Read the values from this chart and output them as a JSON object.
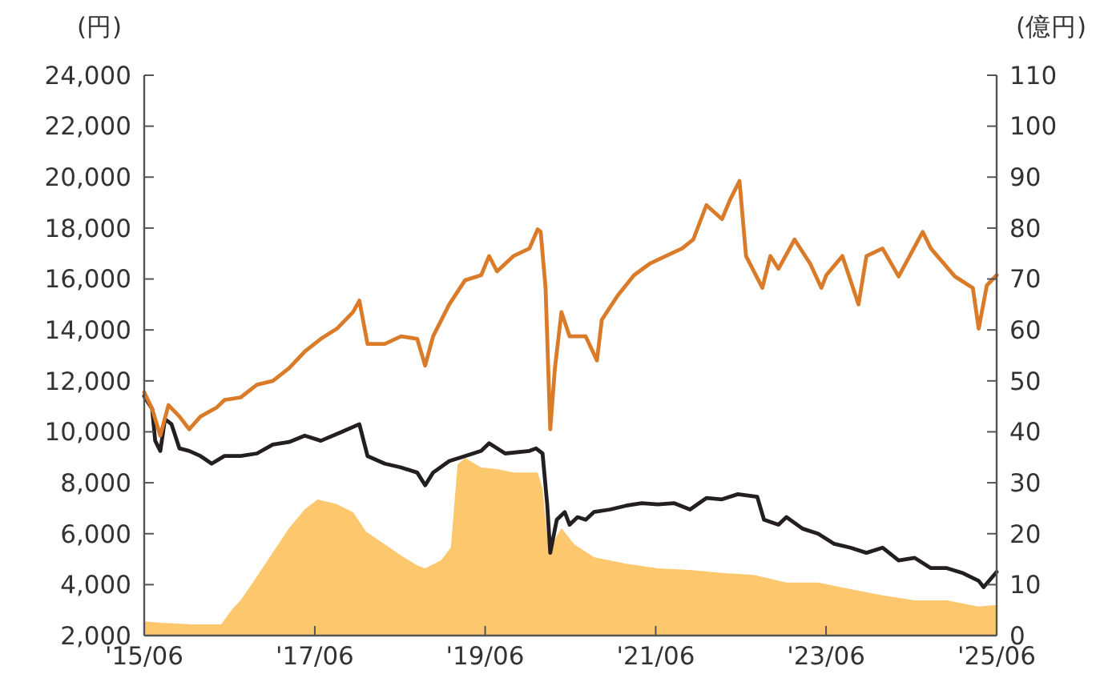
{
  "chart_data": {
    "type": "line",
    "ylabel": "(円)",
    "y2label": "(億円)",
    "xlim": [
      "2015-06-01",
      "2025-06-01"
    ],
    "xticks": [
      {
        "value": "2015-06-01",
        "label": "'15/06"
      },
      {
        "value": "2017-06-01",
        "label": "'17/06"
      },
      {
        "value": "2019-06-01",
        "label": "'19/06"
      },
      {
        "value": "2021-06-01",
        "label": "'21/06"
      },
      {
        "value": "2023-06-01",
        "label": "'23/06"
      },
      {
        "value": "2025-06-01",
        "label": "'25/06"
      }
    ],
    "ylim": [
      2000,
      24000
    ],
    "yticks": [
      {
        "value": 2000,
        "label": "2,000"
      },
      {
        "value": 4000,
        "label": "4,000"
      },
      {
        "value": 6000,
        "label": "6,000"
      },
      {
        "value": 8000,
        "label": "8,000"
      },
      {
        "value": 10000,
        "label": "10,000"
      },
      {
        "value": 12000,
        "label": "12,000"
      },
      {
        "value": 14000,
        "label": "14,000"
      },
      {
        "value": 16000,
        "label": "16,000"
      },
      {
        "value": 18000,
        "label": "18,000"
      },
      {
        "value": 20000,
        "label": "20,000"
      },
      {
        "value": 22000,
        "label": "22,000"
      },
      {
        "value": 24000,
        "label": "24,000"
      }
    ],
    "y2lim": [
      0,
      110
    ],
    "y2ticks": [
      0,
      10,
      20,
      30,
      40,
      50,
      60,
      70,
      80,
      90,
      100,
      110
    ],
    "grid": false,
    "series": [
      {
        "type": "area",
        "axis": "y2",
        "color": "#fdc86d",
        "x": [
          "2015-06-01",
          "2015-08-09",
          "2015-12-24",
          "2016-04-26",
          "2016-06-14",
          "2016-07-18",
          "2016-09-26",
          "2016-12-03",
          "2017-02-11",
          "2017-04-19",
          "2017-06-13",
          "2017-09-04",
          "2017-11-12",
          "2018-01-07",
          "2018-03-28",
          "2018-06-06",
          "2018-08-14",
          "2018-09-17",
          "2018-11-25",
          "2019-01-05",
          "2019-02-03",
          "2019-03-07",
          "2019-05-15",
          "2019-07-22",
          "2019-09-30",
          "2020-01-12",
          "2020-02-02",
          "2020-02-29",
          "2020-03-26",
          "2020-04-23",
          "2020-06-17",
          "2020-09-09",
          "2021-01-25",
          "2021-06-10",
          "2021-10-26",
          "2022-03-12",
          "2022-07-27",
          "2022-12-13",
          "2023-04-28",
          "2023-09-14",
          "2024-01-29",
          "2024-06-15",
          "2024-10-30",
          "2025-03-16",
          "2025-06-01"
        ],
        "values": [
          2.8,
          2.5,
          2.2,
          2.2,
          5.3,
          6.9,
          11.6,
          16.3,
          21.1,
          24.8,
          26.7,
          25.8,
          24.2,
          20.4,
          17.9,
          15.7,
          13.8,
          13.2,
          14.8,
          17.3,
          33.6,
          34.9,
          33,
          32.7,
          32,
          32,
          28.9,
          16.3,
          18.9,
          21.1,
          17.9,
          15.4,
          14.1,
          13.2,
          12.9,
          12.3,
          11.9,
          10.4,
          10.4,
          9.1,
          7.9,
          6.9,
          6.9,
          5.7,
          6
        ]
      },
      {
        "color": "#231f20",
        "x": [
          "2015-06-01",
          "2015-07-05",
          "2015-07-18",
          "2015-08-09",
          "2015-08-29",
          "2015-09-26",
          "2015-10-30",
          "2015-12-11",
          "2016-01-28",
          "2016-03-16",
          "2016-05-10",
          "2016-07-18",
          "2016-09-26",
          "2016-12-03",
          "2017-02-11",
          "2017-04-19",
          "2017-06-27",
          "2017-09-25",
          "2017-12-09",
          "2018-01-13",
          "2018-03-28",
          "2018-06-06",
          "2018-08-14",
          "2018-09-17",
          "2018-10-21",
          "2018-12-29",
          "2019-03-07",
          "2019-05-15",
          "2019-06-18",
          "2019-08-26",
          "2019-12-08",
          "2020-01-05",
          "2020-02-02",
          "2020-02-22",
          "2020-03-06",
          "2020-04-03",
          "2020-05-07",
          "2020-05-28",
          "2020-07-01",
          "2020-08-05",
          "2020-09-09",
          "2020-11-17",
          "2021-01-25",
          "2021-04-02",
          "2021-06-10",
          "2021-08-18",
          "2021-10-26",
          "2022-01-04",
          "2022-03-12",
          "2022-05-19",
          "2022-08-10",
          "2022-09-08",
          "2022-11-09",
          "2022-12-13",
          "2023-02-20",
          "2023-04-28",
          "2023-07-06",
          "2023-09-14",
          "2023-11-21",
          "2024-01-29",
          "2024-04-07",
          "2024-06-15",
          "2024-08-23",
          "2024-10-30",
          "2025-01-08",
          "2025-03-16",
          "2025-04-06",
          "2025-06-01"
        ],
        "values": [
          11400,
          10900,
          9650,
          9250,
          10500,
          10300,
          9350,
          9250,
          9050,
          8750,
          9050,
          9050,
          9150,
          9500,
          9600,
          9850,
          9650,
          10000,
          10300,
          9050,
          8750,
          8600,
          8400,
          7900,
          8400,
          8850,
          9050,
          9250,
          9550,
          9150,
          9250,
          9350,
          9150,
          7150,
          5250,
          6550,
          6850,
          6350,
          6650,
          6550,
          6850,
          6950,
          7100,
          7200,
          7150,
          7200,
          6950,
          7400,
          7350,
          7550,
          7450,
          6550,
          6350,
          6650,
          6200,
          6000,
          5600,
          5450,
          5250,
          5450,
          4950,
          5050,
          4650,
          4650,
          4450,
          4150,
          3900,
          4500
        ]
      },
      {
        "color": "#d97b29",
        "x": [
          "2015-06-01",
          "2015-07-05",
          "2015-08-09",
          "2015-09-13",
          "2015-10-30",
          "2015-12-11",
          "2016-01-28",
          "2016-04-06",
          "2016-05-10",
          "2016-07-18",
          "2016-09-26",
          "2016-12-03",
          "2017-02-11",
          "2017-04-19",
          "2017-06-27",
          "2017-09-04",
          "2017-11-12",
          "2017-12-09",
          "2018-01-13",
          "2018-03-28",
          "2018-06-06",
          "2018-08-14",
          "2018-09-17",
          "2018-10-21",
          "2018-12-29",
          "2019-03-07",
          "2019-05-15",
          "2019-06-18",
          "2019-07-22",
          "2019-09-30",
          "2019-12-08",
          "2020-01-12",
          "2020-01-25",
          "2020-02-15",
          "2020-03-06",
          "2020-03-26",
          "2020-04-23",
          "2020-05-28",
          "2020-08-05",
          "2020-09-22",
          "2020-10-13",
          "2020-12-20",
          "2021-02-28",
          "2021-05-06",
          "2021-07-14",
          "2021-09-22",
          "2021-11-09",
          "2022-01-04",
          "2022-03-12",
          "2022-04-15",
          "2022-05-26",
          "2022-06-23",
          "2022-09-01",
          "2022-10-05",
          "2022-11-09",
          "2023-01-17",
          "2023-03-25",
          "2023-05-12",
          "2023-06-02",
          "2023-08-10",
          "2023-10-18",
          "2023-11-21",
          "2024-01-29",
          "2024-04-07",
          "2024-07-19",
          "2024-08-23",
          "2024-12-04",
          "2025-02-19",
          "2025-03-16",
          "2025-04-20",
          "2025-06-01"
        ],
        "values": [
          11550,
          10900,
          9850,
          11050,
          10600,
          10100,
          10600,
          10950,
          11250,
          11350,
          11850,
          12000,
          12500,
          13150,
          13650,
          14050,
          14700,
          15150,
          13450,
          13450,
          13750,
          13650,
          12600,
          13750,
          15000,
          15950,
          16150,
          16900,
          16300,
          16900,
          17200,
          17950,
          17850,
          15650,
          10100,
          12500,
          14700,
          13750,
          13750,
          12800,
          14400,
          15350,
          16150,
          16600,
          16900,
          17200,
          17550,
          18900,
          18350,
          19100,
          19850,
          16900,
          15650,
          16900,
          16400,
          17550,
          16600,
          15650,
          16150,
          16900,
          15000,
          16900,
          17200,
          16100,
          17850,
          17200,
          16100,
          15650,
          14050,
          15750,
          16150
        ]
      }
    ]
  }
}
